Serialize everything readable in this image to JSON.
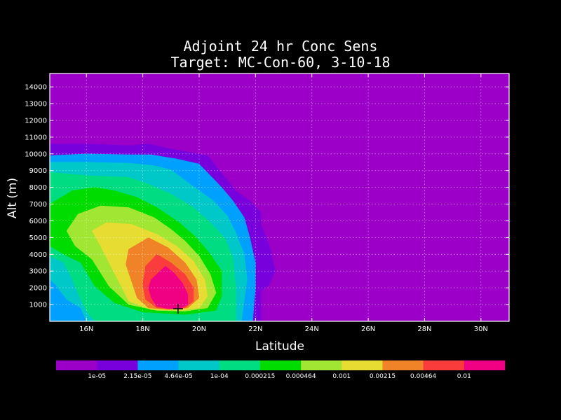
{
  "chart_data": {
    "type": "heatmap",
    "title": "Adjoint 24 hr Conc Sens",
    "subtitle": "Target: MC-Con-60, 3-10-18",
    "xlabel": "Latitude",
    "ylabel": "Alt (m)",
    "xlim": [
      14.7,
      31.0
    ],
    "ylim": [
      0,
      14800
    ],
    "grid": true,
    "x_ticks": [
      {
        "value": 16,
        "label": "16N"
      },
      {
        "value": 18,
        "label": "18N"
      },
      {
        "value": 20,
        "label": "20N"
      },
      {
        "value": 22,
        "label": "22N"
      },
      {
        "value": 24,
        "label": "24N"
      },
      {
        "value": 26,
        "label": "26N"
      },
      {
        "value": 28,
        "label": "28N"
      },
      {
        "value": 30,
        "label": "30N"
      }
    ],
    "y_ticks": [
      {
        "value": 1000,
        "label": "1000"
      },
      {
        "value": 2000,
        "label": "2000"
      },
      {
        "value": 3000,
        "label": "3000"
      },
      {
        "value": 4000,
        "label": "4000"
      },
      {
        "value": 5000,
        "label": "5000"
      },
      {
        "value": 6000,
        "label": "6000"
      },
      {
        "value": 7000,
        "label": "7000"
      },
      {
        "value": 8000,
        "label": "8000"
      },
      {
        "value": 9000,
        "label": "9000"
      },
      {
        "value": 10000,
        "label": "10000"
      },
      {
        "value": 11000,
        "label": "11000"
      },
      {
        "value": 12000,
        "label": "12000"
      },
      {
        "value": 13000,
        "label": "13000"
      },
      {
        "value": 14000,
        "label": "14000"
      }
    ],
    "colorbar": {
      "colors": [
        "#9c00c8",
        "#7800dc",
        "#00a0ff",
        "#00c8c8",
        "#00dc82",
        "#00dc00",
        "#a0e632",
        "#e6dc32",
        "#f08228",
        "#fa3c3c",
        "#f00082"
      ],
      "labels": [
        "1e-05",
        "2.15e-05",
        "4.64e-05",
        "1e-04",
        "0.000215",
        "0.000464",
        "0.001",
        "0.00215",
        "0.00464",
        "0.01"
      ]
    },
    "background_color": "#9c00c8",
    "contours": [
      {
        "level": 1,
        "color": "#7800dc",
        "points": [
          [
            14.7,
            10600
          ],
          [
            16.0,
            10600
          ],
          [
            17.5,
            10500
          ],
          [
            18.2,
            10600
          ],
          [
            19.0,
            10300
          ],
          [
            20.3,
            9900
          ],
          [
            21.3,
            7800
          ],
          [
            21.8,
            7200
          ],
          [
            22.2,
            6500
          ],
          [
            22.2,
            5800
          ],
          [
            22.5,
            4500
          ],
          [
            22.7,
            3000
          ],
          [
            22.5,
            2200
          ],
          [
            22.2,
            1800
          ],
          [
            22.2,
            0
          ],
          [
            14.7,
            0
          ]
        ]
      },
      {
        "level": 2,
        "color": "#00a0ff",
        "points": [
          [
            14.7,
            9900
          ],
          [
            16.0,
            10000
          ],
          [
            17.5,
            9950
          ],
          [
            18.3,
            9950
          ],
          [
            19.2,
            9700
          ],
          [
            20.0,
            9400
          ],
          [
            20.8,
            8000
          ],
          [
            21.2,
            7200
          ],
          [
            21.6,
            6200
          ],
          [
            21.8,
            5000
          ],
          [
            22.0,
            3500
          ],
          [
            22.0,
            2000
          ],
          [
            21.9,
            0
          ],
          [
            14.7,
            0
          ]
        ]
      },
      {
        "level": 3,
        "color": "#00c8c8",
        "points": [
          [
            14.7,
            9500
          ],
          [
            16.0,
            9500
          ],
          [
            17.5,
            9450
          ],
          [
            18.4,
            9300
          ],
          [
            19.0,
            9050
          ],
          [
            19.6,
            8300
          ],
          [
            20.5,
            7200
          ],
          [
            21.0,
            6300
          ],
          [
            21.3,
            5300
          ],
          [
            21.6,
            4000
          ],
          [
            21.7,
            2500
          ],
          [
            21.5,
            0
          ],
          [
            16.0,
            0
          ],
          [
            15.8,
            800
          ],
          [
            15.3,
            1300
          ],
          [
            14.9,
            2200
          ],
          [
            14.7,
            2500
          ]
        ]
      },
      {
        "level": 4,
        "color": "#00dc82",
        "points": [
          [
            14.7,
            8900
          ],
          [
            16.0,
            8700
          ],
          [
            17.5,
            8600
          ],
          [
            18.2,
            8200
          ],
          [
            19.0,
            7600
          ],
          [
            19.8,
            6800
          ],
          [
            20.4,
            5900
          ],
          [
            20.9,
            5000
          ],
          [
            21.2,
            3800
          ],
          [
            21.3,
            2000
          ],
          [
            21.3,
            0
          ],
          [
            16.3,
            0
          ],
          [
            16.0,
            600
          ],
          [
            15.8,
            1300
          ],
          [
            15.5,
            2500
          ],
          [
            15.2,
            3500
          ],
          [
            14.7,
            3900
          ]
        ]
      },
      {
        "level": 5,
        "color": "#00dc00",
        "points": [
          [
            14.7,
            7000
          ],
          [
            15.5,
            7800
          ],
          [
            16.3,
            8000
          ],
          [
            17.0,
            7800
          ],
          [
            17.8,
            7400
          ],
          [
            18.5,
            6800
          ],
          [
            19.3,
            5900
          ],
          [
            19.9,
            5000
          ],
          [
            20.4,
            4000
          ],
          [
            20.8,
            3000
          ],
          [
            20.8,
            1500
          ],
          [
            20.6,
            650
          ],
          [
            19.5,
            400
          ],
          [
            18.0,
            550
          ],
          [
            17.0,
            1100
          ],
          [
            16.3,
            2100
          ],
          [
            15.8,
            3500
          ],
          [
            15.2,
            4000
          ],
          [
            14.7,
            4500
          ]
        ]
      },
      {
        "level": 6,
        "color": "#a0e632",
        "points": [
          [
            15.3,
            5400
          ],
          [
            15.7,
            6400
          ],
          [
            16.5,
            6900
          ],
          [
            17.5,
            6800
          ],
          [
            18.4,
            6200
          ],
          [
            19.0,
            5500
          ],
          [
            19.5,
            4800
          ],
          [
            20.0,
            3900
          ],
          [
            20.4,
            2800
          ],
          [
            20.6,
            1700
          ],
          [
            20.3,
            800
          ],
          [
            19.5,
            600
          ],
          [
            18.5,
            650
          ],
          [
            17.5,
            1000
          ],
          [
            16.8,
            2100
          ],
          [
            16.2,
            3700
          ],
          [
            15.6,
            4500
          ]
        ]
      },
      {
        "level": 7,
        "color": "#e6dc32",
        "points": [
          [
            16.2,
            5400
          ],
          [
            16.7,
            5900
          ],
          [
            17.6,
            5800
          ],
          [
            18.5,
            5200
          ],
          [
            19.2,
            4500
          ],
          [
            19.8,
            3600
          ],
          [
            20.2,
            2500
          ],
          [
            20.3,
            1500
          ],
          [
            20.0,
            800
          ],
          [
            19.4,
            650
          ],
          [
            18.3,
            700
          ],
          [
            17.5,
            1200
          ],
          [
            17.2,
            2200
          ],
          [
            16.8,
            3500
          ],
          [
            16.5,
            4500
          ]
        ]
      },
      {
        "level": 8,
        "color": "#f08228",
        "points": [
          [
            17.5,
            4300
          ],
          [
            18.2,
            5000
          ],
          [
            18.9,
            4400
          ],
          [
            19.5,
            3500
          ],
          [
            19.9,
            2500
          ],
          [
            20.0,
            1400
          ],
          [
            19.6,
            800
          ],
          [
            18.9,
            700
          ],
          [
            18.2,
            800
          ],
          [
            17.8,
            1400
          ],
          [
            17.6,
            2400
          ],
          [
            17.4,
            3400
          ]
        ]
      },
      {
        "level": 9,
        "color": "#fa3c3c",
        "points": [
          [
            18.1,
            3300
          ],
          [
            18.5,
            4000
          ],
          [
            19.0,
            3500
          ],
          [
            19.5,
            2800
          ],
          [
            19.8,
            2000
          ],
          [
            19.8,
            1200
          ],
          [
            19.5,
            800
          ],
          [
            19.0,
            750
          ],
          [
            18.5,
            800
          ],
          [
            18.1,
            1300
          ],
          [
            18.0,
            2200
          ]
        ]
      },
      {
        "level": 10,
        "color": "#f00082",
        "points": [
          [
            18.3,
            2500
          ],
          [
            18.8,
            3300
          ],
          [
            19.1,
            2900
          ],
          [
            19.4,
            2300
          ],
          [
            19.6,
            1600
          ],
          [
            19.6,
            1000
          ],
          [
            19.3,
            750
          ],
          [
            18.9,
            750
          ],
          [
            18.5,
            900
          ],
          [
            18.3,
            1400
          ],
          [
            18.2,
            2000
          ]
        ]
      }
    ],
    "marker": {
      "symbol": "+",
      "x": 19.25,
      "y": 750
    }
  }
}
